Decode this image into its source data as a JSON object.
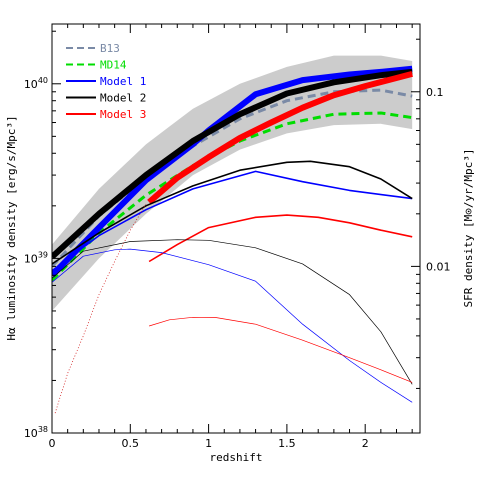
{
  "chart_data": {
    "type": "line",
    "xlabel": "redshift",
    "ylabel": "Hα luminosity density [erg/s/Mpc³]",
    "ylabel_right": "SFR density [M⊙/yr/Mpc³]",
    "xlim": [
      0,
      2.35
    ],
    "ylim": [
      1e+38,
      2.2e+40
    ],
    "yscale": "log",
    "x_ticks": [
      "0",
      "0.5",
      "1",
      "1.5",
      "2"
    ],
    "x_tick_values": [
      0,
      0.5,
      1,
      1.5,
      2
    ],
    "y_ticks": [
      {
        "base": "10",
        "exp": "38",
        "value": 1e+38
      },
      {
        "base": "10",
        "exp": "39",
        "value": 1e+39
      },
      {
        "base": "10",
        "exp": "40",
        "value": 1e+40
      }
    ],
    "right_ticks": [
      {
        "label": "0.1",
        "value": 0.1
      },
      {
        "label": "0.01",
        "value": 0.01
      }
    ],
    "right_scale_hadensity_for_sfr_0_1": 9e+39,
    "grid": false,
    "legend_position": "top-left",
    "band": {
      "color": "#cccccc",
      "x": [
        0,
        0.3,
        0.6,
        0.9,
        1.2,
        1.5,
        1.8,
        2.1,
        2.3
      ],
      "upper": [
        1.2e+39,
        2.5e+39,
        4.5e+39,
        7.2e+39,
        1e+40,
        1.25e+40,
        1.45e+40,
        1.45e+40,
        1.35e+40
      ],
      "lower": [
        5e+38,
        1e+39,
        1.8e+39,
        3e+39,
        4.2e+39,
        5.2e+39,
        5.8e+39,
        5.9e+39,
        5.5e+39
      ]
    },
    "series": [
      {
        "name": "B13",
        "legend": true,
        "color": "#7a8aa6",
        "width": 3,
        "dash": "8,5",
        "x": [
          0,
          0.3,
          0.6,
          0.9,
          1.2,
          1.5,
          1.8,
          2.1,
          2.3
        ],
        "y": [
          9e+38,
          1.75e+39,
          2.9e+39,
          4.4e+39,
          6.3e+39,
          8e+39,
          9e+39,
          9.2e+39,
          8.5e+39
        ]
      },
      {
        "name": "MD14",
        "legend": true,
        "color": "#00dd00",
        "width": 3,
        "dash": "8,5",
        "x": [
          0,
          0.3,
          0.6,
          0.9,
          1.2,
          1.5,
          1.8,
          2.1,
          2.3
        ],
        "y": [
          7.5e+38,
          1.4e+39,
          2.3e+39,
          3.4e+39,
          4.7e+39,
          5.9e+39,
          6.7e+39,
          6.8e+39,
          6.4e+39
        ]
      },
      {
        "name": "Model 1",
        "legend": true,
        "color": "#0000ff",
        "width": 6,
        "dash": "",
        "x": [
          0,
          0.3,
          0.6,
          0.9,
          1.0,
          1.3,
          1.6,
          1.9,
          2.1,
          2.3
        ],
        "y": [
          8e+38,
          1.5e+39,
          2.8e+39,
          4.5e+39,
          5.4e+39,
          8.7e+39,
          1.05e+40,
          1.13e+40,
          1.17e+40,
          1.22e+40
        ]
      },
      {
        "name": "Model 2",
        "legend": true,
        "color": "#000000",
        "width": 6,
        "dash": "",
        "x": [
          0,
          0.3,
          0.6,
          0.9,
          1.2,
          1.5,
          1.8,
          2.1,
          2.3
        ],
        "y": [
          1.02e+39,
          1.8e+39,
          3e+39,
          4.7e+39,
          6.7e+39,
          8.8e+39,
          1.02e+40,
          1.12e+40,
          1.17e+40
        ]
      },
      {
        "name": "Model 3",
        "legend": true,
        "color": "#ff0000",
        "width": 6,
        "dash": "",
        "x": [
          0.62,
          0.8,
          1.0,
          1.2,
          1.4,
          1.6,
          1.8,
          2.0,
          2.2,
          2.3
        ],
        "y": [
          2.1e+39,
          2.9e+39,
          3.8e+39,
          4.9e+39,
          6e+39,
          7.3e+39,
          8.6e+39,
          9.7e+39,
          1.08e+40,
          1.14e+40
        ]
      },
      {
        "name": "Model 1 (medium)",
        "legend": false,
        "color": "#0000ff",
        "width": 1.6,
        "dash": "",
        "x": [
          0,
          0.3,
          0.6,
          0.9,
          1.3,
          1.6,
          1.9,
          2.3
        ],
        "y": [
          8.5e+38,
          1.35e+39,
          1.9e+39,
          2.5e+39,
          3.15e+39,
          2.75e+39,
          2.45e+39,
          2.2e+39
        ]
      },
      {
        "name": "Model 2 (medium)",
        "legend": false,
        "color": "#000000",
        "width": 1.6,
        "dash": "",
        "x": [
          0,
          0.3,
          0.6,
          0.9,
          1.2,
          1.5,
          1.65,
          1.9,
          2.1,
          2.3
        ],
        "y": [
          9.3e+38,
          1.4e+39,
          2e+39,
          2.6e+39,
          3.2e+39,
          3.55e+39,
          3.6e+39,
          3.35e+39,
          2.85e+39,
          2.2e+39
        ]
      },
      {
        "name": "Model 3 (medium)",
        "legend": false,
        "color": "#ff0000",
        "width": 1.6,
        "dash": "",
        "x": [
          0.62,
          0.8,
          1.0,
          1.3,
          1.5,
          1.7,
          1.9,
          2.1,
          2.3
        ],
        "y": [
          9.6e+38,
          1.2e+39,
          1.5e+39,
          1.72e+39,
          1.77e+39,
          1.72e+39,
          1.6e+39,
          1.45e+39,
          1.33e+39
        ]
      },
      {
        "name": "Model 1 (thin)",
        "legend": false,
        "color": "#0000ff",
        "width": 0.7,
        "dash": "",
        "x": [
          0,
          0.2,
          0.4,
          0.5,
          0.7,
          1.0,
          1.3,
          1.6,
          1.9,
          2.1,
          2.3
        ],
        "y": [
          7.3e+38,
          1.03e+39,
          1.12e+39,
          1.13e+39,
          1.08e+39,
          9.2e+38,
          7.4e+38,
          4.2e+38,
          2.6e+38,
          1.95e+38,
          1.5e+38
        ]
      },
      {
        "name": "Model 2 (thin)",
        "legend": false,
        "color": "#000000",
        "width": 0.7,
        "dash": "",
        "x": [
          0,
          0.2,
          0.5,
          0.8,
          1.0,
          1.3,
          1.6,
          1.9,
          2.1,
          2.3
        ],
        "y": [
          7.7e+38,
          1.1e+39,
          1.25e+39,
          1.28e+39,
          1.27e+39,
          1.15e+39,
          9.3e+38,
          6.2e+38,
          3.8e+38,
          1.9e+38
        ]
      },
      {
        "name": "Model 3 (thin)",
        "legend": false,
        "color": "#ff0000",
        "width": 0.7,
        "dash": "",
        "x": [
          0.62,
          0.75,
          0.9,
          1.05,
          1.3,
          1.6,
          1.9,
          2.1,
          2.3
        ],
        "y": [
          4.1e+38,
          4.45e+38,
          4.6e+38,
          4.58e+38,
          4.2e+38,
          3.4e+38,
          2.7e+38,
          2.3e+38,
          1.95e+38
        ]
      },
      {
        "name": "Model 3 (dotted)",
        "legend": false,
        "color": "#cc0000",
        "width": 0.7,
        "dash": "1,2",
        "x": [
          0.02,
          0.1,
          0.2,
          0.3,
          0.4,
          0.5,
          0.6
        ],
        "y": [
          1.3e+38,
          2.2e+38,
          3.6e+38,
          6.2e+38,
          9.6e+38,
          1.45e+39,
          2.05e+39
        ]
      }
    ]
  }
}
